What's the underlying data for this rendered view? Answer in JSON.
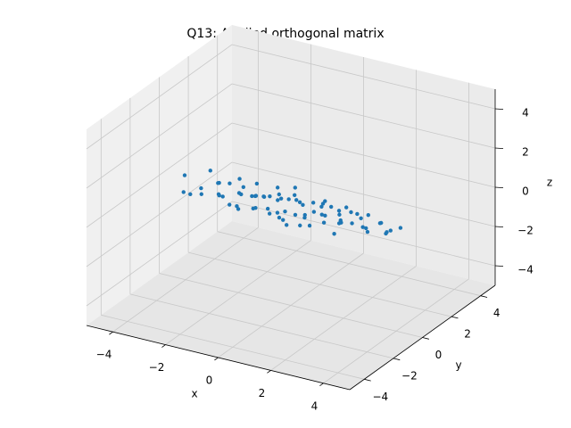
{
  "chart_data": {
    "type": "scatter3d",
    "title": "Q13: Applied orthogonal matrix",
    "x_label": "x",
    "y_label": "y",
    "z_label": "z",
    "color": "#1f77b4",
    "xlim": [
      -5,
      5
    ],
    "ylim": [
      -5,
      5
    ],
    "zlim": [
      -5,
      5
    ],
    "xticks": [
      {
        "value": -4,
        "label": "−4"
      },
      {
        "value": -2,
        "label": "−2"
      },
      0,
      2,
      4
    ],
    "yticks": [
      {
        "value": -4,
        "label": "−4"
      },
      {
        "value": -2,
        "label": "−2"
      },
      0,
      2,
      4
    ],
    "zticks": [
      {
        "value": -4,
        "label": "−4"
      },
      {
        "value": -2,
        "label": "−2"
      },
      0,
      2,
      4
    ],
    "grid": true,
    "x": [
      -4.2,
      -3.8,
      -3.5,
      -3.3,
      -3.1,
      -2.9,
      -2.8,
      -2.6,
      -2.5,
      -2.3,
      -2.2,
      -2.0,
      -1.9,
      -1.8,
      -1.7,
      -1.5,
      -1.4,
      -1.3,
      -1.2,
      -1.1,
      -1.0,
      -0.9,
      -0.8,
      -0.7,
      -0.6,
      -0.5,
      -0.4,
      -0.3,
      -0.2,
      -0.1,
      0.0,
      0.1,
      0.2,
      0.3,
      0.4,
      0.5,
      0.6,
      0.7,
      0.8,
      0.9,
      1.0,
      1.1,
      1.2,
      1.3,
      1.4,
      1.5,
      1.7,
      1.8,
      1.9,
      2.0,
      2.2,
      2.3,
      2.5,
      2.6,
      2.8,
      2.9,
      3.1,
      3.3,
      3.5,
      3.7,
      4.0,
      -3.0,
      -2.0,
      -1.0,
      0.0,
      1.0,
      2.0,
      3.0,
      -2.5,
      -1.5,
      -0.5,
      0.5,
      1.5,
      2.5,
      -3.6,
      3.9,
      -1.6,
      0.8,
      -0.3,
      1.9
    ],
    "y": [
      0.3,
      -0.5,
      0.8,
      -0.2,
      0.6,
      -0.9,
      0.1,
      0.5,
      -0.4,
      0.9,
      -0.7,
      0.2,
      1.1,
      -0.3,
      0.4,
      -1.0,
      0.7,
      -0.1,
      0.3,
      -0.6,
      1.0,
      -0.8,
      0.0,
      0.6,
      -0.5,
      1.2,
      -0.2,
      0.4,
      -1.1,
      0.8,
      -0.4,
      0.2,
      -0.9,
      1.0,
      0.1,
      -0.6,
      0.5,
      -0.3,
      0.9,
      -1.0,
      0.3,
      -0.7,
      0.6,
      0.0,
      -0.4,
      1.1,
      -0.8,
      0.2,
      0.7,
      -0.2,
      -1.0,
      0.4,
      0.8,
      -0.5,
      0.1,
      -0.3,
      0.6,
      -0.7,
      0.2,
      -0.1,
      0.3,
      0.5,
      -0.6,
      0.9,
      -0.8,
      0.4,
      -0.3,
      0.7,
      1.0,
      -0.9,
      0.0,
      -1.2,
      0.6,
      0.3,
      -0.4,
      -0.2,
      0.5,
      -0.5,
      0.8,
      -0.1
    ],
    "z": [
      0.1,
      -0.2,
      0.3,
      0.0,
      -0.1,
      0.2,
      -0.3,
      0.1,
      0.0,
      -0.2,
      0.2,
      -0.1,
      0.0,
      0.3,
      -0.2,
      0.1,
      -0.3,
      0.2,
      0.0,
      -0.1,
      -0.2,
      0.1,
      0.3,
      -0.1,
      0.0,
      0.2,
      -0.3,
      0.1,
      0.2,
      -0.2,
      0.0,
      0.3,
      -0.1,
      -0.2,
      0.2,
      0.1,
      -0.3,
      0.0,
      0.1,
      -0.1,
      0.2,
      -0.2,
      0.1,
      0.0,
      0.3,
      -0.1,
      0.2,
      -0.3,
      0.0,
      0.1,
      -0.1,
      0.2,
      0.0,
      0.3,
      -0.2,
      0.1,
      -0.1,
      0.2,
      -0.3,
      0.0,
      0.1,
      0.0,
      -0.2,
      0.2,
      -0.1,
      0.3,
      0.0,
      -0.2,
      0.1,
      -0.1,
      0.2,
      -0.1,
      0.0,
      0.1,
      -0.3,
      0.2,
      -0.2,
      0.0,
      0.1,
      0.3
    ]
  }
}
